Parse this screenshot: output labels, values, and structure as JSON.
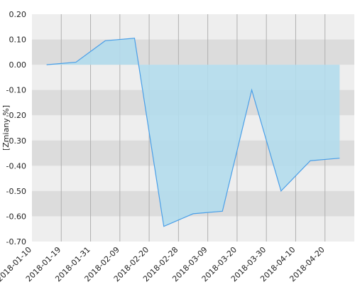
{
  "chart_data": {
    "type": "area",
    "y_label": "[Zmiany %]",
    "categories": [
      "2018-01-10",
      "2018-01-19",
      "2018-01-31",
      "2018-02-09",
      "2018-02-20",
      "2018-02-28",
      "2018-03-09",
      "2018-03-20",
      "2018-03-30",
      "2018-04-10",
      "2018-04-20"
    ],
    "values": [
      0.0,
      0.01,
      0.095,
      0.105,
      -0.64,
      -0.59,
      -0.58,
      -0.1,
      -0.5,
      -0.38,
      -0.37
    ],
    "color": "#4a9fe8",
    "fill_color": "#b3dcec",
    "ylim": [
      -0.7,
      0.2
    ],
    "yticks": [
      {
        "value": 0.2,
        "label": "0.20"
      },
      {
        "value": 0.1,
        "label": "0.10"
      },
      {
        "value": 0,
        "label": "0.00"
      },
      {
        "value": -0.1,
        "label": "-0.10"
      },
      {
        "value": -0.2,
        "label": "-0.20"
      },
      {
        "value": -0.3,
        "label": "-0.30"
      },
      {
        "value": -0.4,
        "label": "-0.40"
      },
      {
        "value": -0.5,
        "label": "-0.50"
      },
      {
        "value": -0.6,
        "label": "-0.60"
      },
      {
        "value": -0.7,
        "label": "-0.70"
      }
    ],
    "grid": true
  }
}
